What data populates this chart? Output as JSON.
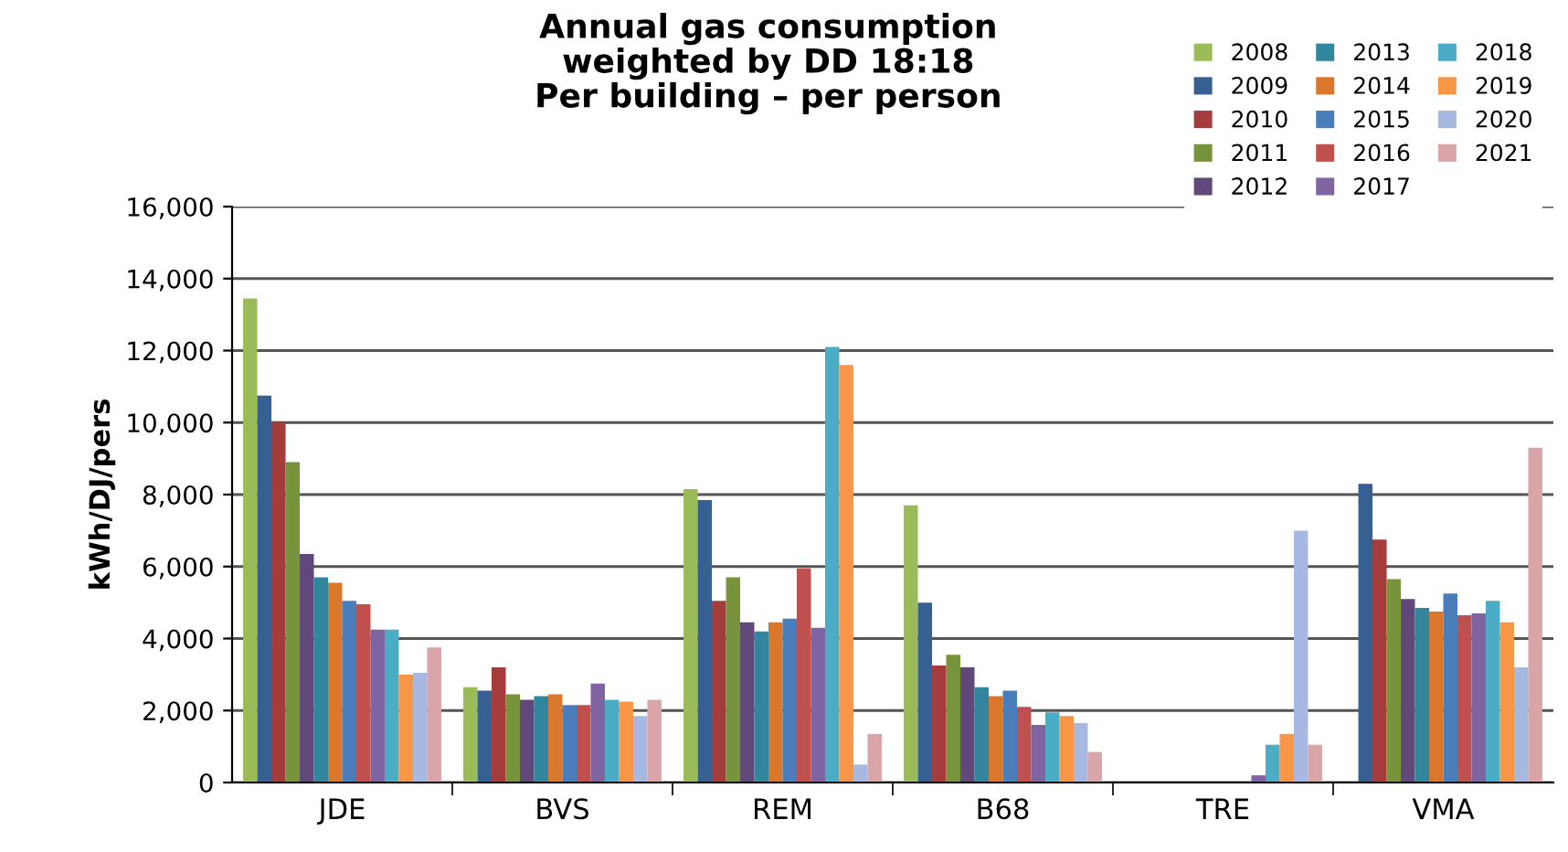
{
  "chart_data": {
    "type": "bar",
    "title": "Annual gas consumption\nweighted by DD 18:18\nPer building – per person",
    "ylabel": "kWh/DJ/pers",
    "categories": [
      "JDE",
      "BVS",
      "REM",
      "B68",
      "TRE",
      "VMA"
    ],
    "ylim": [
      0,
      16000
    ],
    "yticks": [
      {
        "value": 0,
        "label": "0"
      },
      {
        "value": 2000,
        "label": "2,000"
      },
      {
        "value": 4000,
        "label": "4,000"
      },
      {
        "value": 6000,
        "label": "6,000"
      },
      {
        "value": 8000,
        "label": "8,000"
      },
      {
        "value": 10000,
        "label": "10,000"
      },
      {
        "value": 12000,
        "label": "12,000"
      },
      {
        "value": 14000,
        "label": "14,000"
      },
      {
        "value": 16000,
        "label": "16,000"
      }
    ],
    "grid": "y",
    "legend": "top right",
    "series": [
      {
        "name": "2008",
        "color": "#9bbb59",
        "values": [
          13450,
          2650,
          8150,
          7700,
          null,
          null
        ]
      },
      {
        "name": "2009",
        "color": "#376092",
        "values": [
          10750,
          2550,
          7850,
          5000,
          null,
          8300
        ]
      },
      {
        "name": "2010",
        "color": "#a33c3a",
        "values": [
          10000,
          3200,
          5050,
          3250,
          null,
          6750
        ]
      },
      {
        "name": "2011",
        "color": "#77933c",
        "values": [
          8900,
          2450,
          5700,
          3550,
          null,
          5650
        ]
      },
      {
        "name": "2012",
        "color": "#60497a",
        "values": [
          6350,
          2300,
          4450,
          3200,
          null,
          5100
        ]
      },
      {
        "name": "2013",
        "color": "#31859c",
        "values": [
          5700,
          2400,
          4200,
          2650,
          null,
          4850
        ]
      },
      {
        "name": "2014",
        "color": "#d9782d",
        "values": [
          5550,
          2450,
          4450,
          2400,
          null,
          4750
        ]
      },
      {
        "name": "2015",
        "color": "#4a7ebb",
        "values": [
          5050,
          2150,
          4550,
          2550,
          null,
          5250
        ]
      },
      {
        "name": "2016",
        "color": "#c0504d",
        "values": [
          4950,
          2150,
          5950,
          2100,
          null,
          4650
        ]
      },
      {
        "name": "2017",
        "color": "#8064a2",
        "values": [
          4250,
          2750,
          4300,
          1600,
          200,
          4700
        ]
      },
      {
        "name": "2018",
        "color": "#4bacc6",
        "values": [
          4250,
          2300,
          12100,
          1950,
          1050,
          5050
        ]
      },
      {
        "name": "2019",
        "color": "#f79646",
        "values": [
          3000,
          2250,
          11600,
          1850,
          1350,
          4450
        ]
      },
      {
        "name": "2020",
        "color": "#a7b9e0",
        "values": [
          3050,
          1850,
          500,
          1650,
          7000,
          3200
        ]
      },
      {
        "name": "2021",
        "color": "#d9a5a8",
        "values": [
          3750,
          2300,
          1350,
          850,
          1050,
          9300
        ]
      }
    ]
  }
}
